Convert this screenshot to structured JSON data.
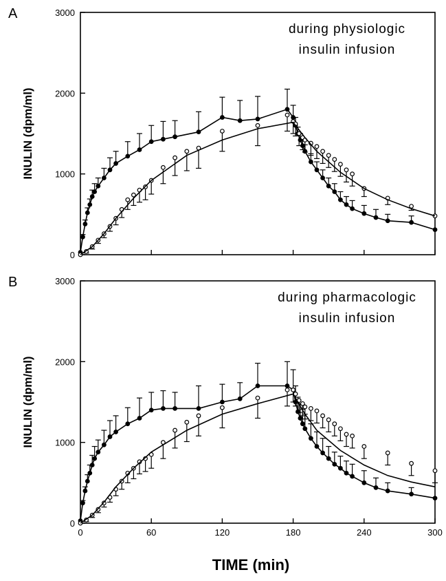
{
  "chart_data": [
    {
      "type": "scatter",
      "panel_label": "A",
      "annotation": [
        "during physiologic",
        "insulin infusion"
      ],
      "ylabel": "INULIN (dpm/ml)",
      "xlim": [
        0,
        300
      ],
      "ylim": [
        0,
        3000
      ],
      "xticks": [
        0,
        60,
        120,
        180,
        240,
        300
      ],
      "yticks": [
        0,
        1000,
        2000,
        3000
      ],
      "show_xtick_labels": false,
      "series": [
        {
          "marker": "filled",
          "color": "#000000",
          "connect": true,
          "error_direction": "up",
          "x": [
            0,
            2,
            4,
            6,
            8,
            10,
            12,
            15,
            20,
            25,
            30,
            40,
            50,
            60,
            70,
            80,
            100,
            120,
            135,
            150,
            175,
            180,
            182,
            184,
            186,
            188,
            190,
            195,
            200,
            205,
            210,
            215,
            220,
            225,
            230,
            240,
            250,
            260,
            280,
            300
          ],
          "values": [
            30,
            220,
            380,
            520,
            620,
            720,
            780,
            850,
            950,
            1050,
            1130,
            1220,
            1300,
            1400,
            1430,
            1460,
            1520,
            1700,
            1660,
            1680,
            1800,
            1700,
            1600,
            1500,
            1420,
            1350,
            1280,
            1150,
            1050,
            950,
            850,
            780,
            680,
            620,
            570,
            510,
            460,
            420,
            400,
            310
          ],
          "errors": [
            0,
            30,
            50,
            60,
            70,
            80,
            100,
            100,
            120,
            150,
            150,
            180,
            200,
            200,
            220,
            200,
            250,
            250,
            250,
            280,
            250,
            150,
            100,
            80,
            80,
            80,
            80,
            100,
            100,
            100,
            100,
            100,
            100,
            100,
            100,
            100,
            100,
            80,
            80,
            0
          ]
        },
        {
          "marker": "open",
          "color": "#000000",
          "connect": false,
          "error_direction": "down",
          "x": [
            0,
            5,
            10,
            15,
            20,
            25,
            30,
            35,
            40,
            45,
            50,
            55,
            60,
            70,
            80,
            90,
            100,
            120,
            150,
            175,
            180,
            182,
            185,
            188,
            190,
            195,
            200,
            205,
            210,
            215,
            220,
            225,
            230,
            240,
            260,
            280,
            300
          ],
          "values": [
            0,
            40,
            100,
            180,
            260,
            350,
            450,
            560,
            680,
            740,
            800,
            840,
            920,
            1080,
            1200,
            1280,
            1320,
            1530,
            1600,
            1730,
            1650,
            1620,
            1500,
            1450,
            1420,
            1380,
            1340,
            1280,
            1230,
            1180,
            1120,
            1050,
            1000,
            820,
            700,
            600,
            480
          ],
          "errors": [
            0,
            20,
            30,
            40,
            50,
            60,
            80,
            100,
            120,
            130,
            150,
            160,
            170,
            200,
            220,
            240,
            250,
            250,
            250,
            200,
            150,
            150,
            150,
            150,
            150,
            150,
            150,
            150,
            150,
            150,
            150,
            150,
            150,
            100,
            80,
            50,
            0
          ]
        },
        {
          "marker": "line",
          "color": "#000000",
          "x": [
            0,
            10,
            20,
            30,
            45,
            60,
            90,
            120,
            150,
            180,
            190,
            200,
            220,
            240,
            260,
            280,
            300
          ],
          "values": [
            0,
            100,
            260,
            450,
            700,
            920,
            1230,
            1420,
            1560,
            1640,
            1450,
            1280,
            1020,
            820,
            680,
            570,
            480
          ]
        }
      ]
    },
    {
      "type": "scatter",
      "panel_label": "B",
      "annotation": [
        "during pharmacologic",
        "insulin infusion"
      ],
      "ylabel": "INULIN (dpm/ml)",
      "xlabel": "TIME (min)",
      "xlim": [
        0,
        300
      ],
      "ylim": [
        0,
        3000
      ],
      "xticks": [
        0,
        60,
        120,
        180,
        240,
        300
      ],
      "yticks": [
        0,
        1000,
        2000,
        3000
      ],
      "show_xtick_labels": true,
      "series": [
        {
          "marker": "filled",
          "color": "#000000",
          "connect": true,
          "error_direction": "up",
          "x": [
            0,
            2,
            4,
            6,
            8,
            10,
            12,
            15,
            20,
            25,
            30,
            40,
            50,
            60,
            70,
            80,
            100,
            120,
            135,
            150,
            175,
            180,
            182,
            184,
            186,
            188,
            190,
            195,
            200,
            205,
            210,
            215,
            220,
            225,
            230,
            240,
            250,
            260,
            280,
            300
          ],
          "values": [
            30,
            250,
            400,
            520,
            620,
            720,
            800,
            880,
            970,
            1070,
            1130,
            1230,
            1300,
            1400,
            1420,
            1420,
            1420,
            1500,
            1540,
            1700,
            1700,
            1650,
            1500,
            1380,
            1300,
            1230,
            1170,
            1050,
            950,
            870,
            800,
            730,
            680,
            620,
            580,
            500,
            440,
            400,
            360,
            310
          ],
          "errors": [
            0,
            30,
            50,
            80,
            100,
            120,
            150,
            150,
            180,
            200,
            200,
            200,
            250,
            220,
            220,
            200,
            280,
            220,
            200,
            280,
            300,
            250,
            200,
            180,
            180,
            180,
            180,
            180,
            180,
            180,
            150,
            150,
            150,
            150,
            150,
            150,
            120,
            100,
            80,
            0
          ]
        },
        {
          "marker": "open",
          "color": "#000000",
          "connect": false,
          "error_direction": "down",
          "x": [
            0,
            5,
            10,
            15,
            20,
            25,
            30,
            35,
            40,
            45,
            50,
            55,
            60,
            70,
            80,
            90,
            100,
            120,
            150,
            175,
            180,
            182,
            185,
            188,
            190,
            195,
            200,
            205,
            210,
            215,
            220,
            225,
            230,
            240,
            260,
            280,
            300
          ],
          "values": [
            0,
            40,
            100,
            170,
            250,
            320,
            420,
            520,
            620,
            680,
            760,
            800,
            850,
            1000,
            1150,
            1250,
            1330,
            1430,
            1550,
            1650,
            1650,
            1600,
            1520,
            1480,
            1440,
            1420,
            1390,
            1330,
            1280,
            1230,
            1170,
            1100,
            1080,
            950,
            870,
            740,
            650
          ],
          "errors": [
            0,
            20,
            30,
            40,
            50,
            60,
            80,
            100,
            120,
            130,
            150,
            160,
            170,
            200,
            220,
            240,
            250,
            250,
            250,
            200,
            150,
            150,
            150,
            150,
            150,
            150,
            150,
            150,
            150,
            150,
            150,
            150,
            150,
            150,
            150,
            150,
            150
          ]
        },
        {
          "marker": "line",
          "color": "#000000",
          "x": [
            0,
            10,
            20,
            30,
            45,
            60,
            90,
            120,
            150,
            180,
            190,
            200,
            220,
            240,
            260,
            280,
            300
          ],
          "values": [
            0,
            100,
            260,
            450,
            680,
            880,
            1150,
            1350,
            1480,
            1600,
            1350,
            1150,
            900,
            720,
            590,
            510,
            450
          ]
        }
      ]
    }
  ]
}
